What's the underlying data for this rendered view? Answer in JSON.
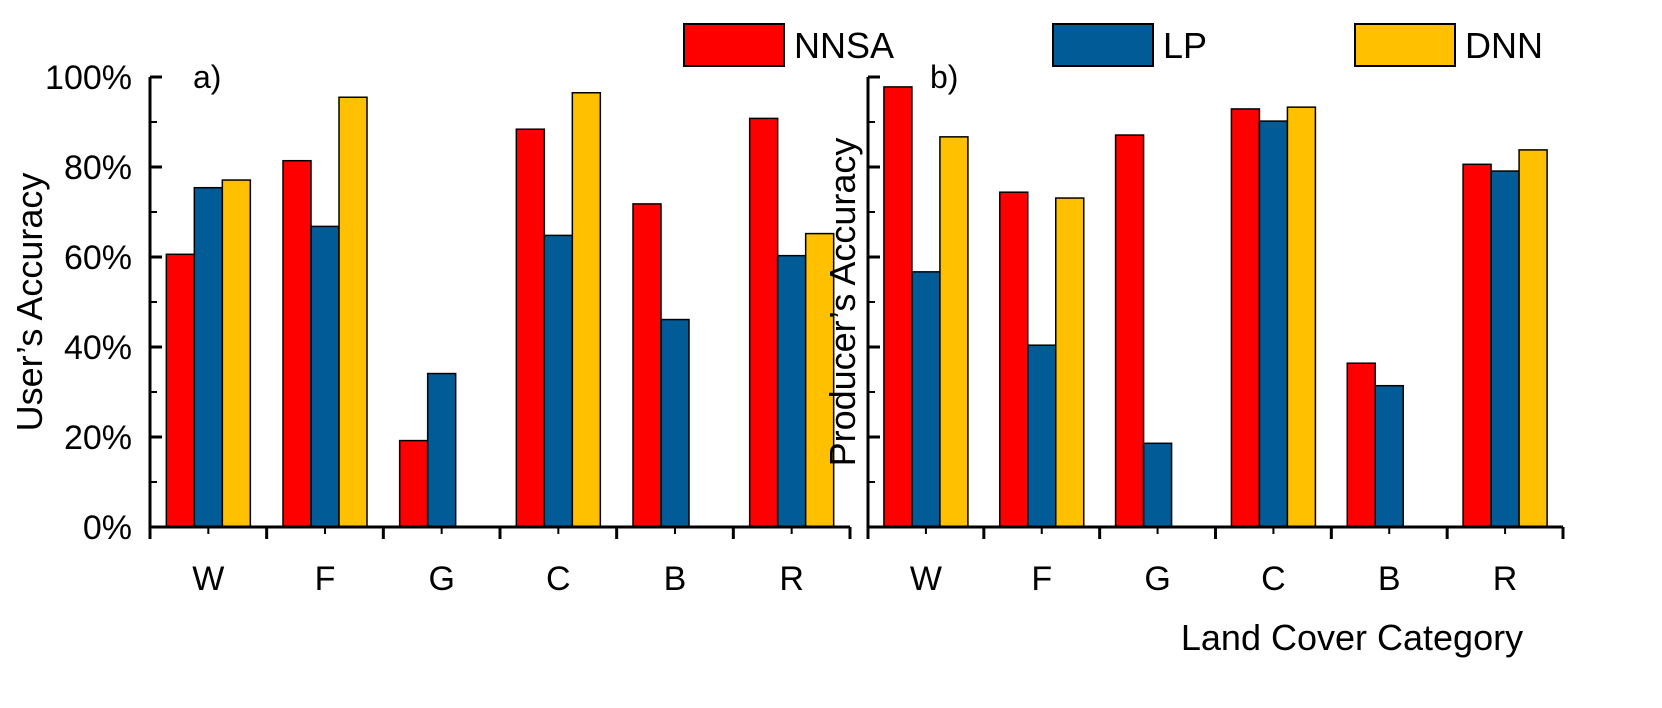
{
  "legend": {
    "items": [
      {
        "label": "NNSA",
        "color": "#ff0000"
      },
      {
        "label": "LP",
        "color": "#005b96"
      },
      {
        "label": "DNN",
        "color": "#ffc000"
      }
    ]
  },
  "xlabel": "Land Cover Category",
  "chart_data": [
    {
      "type": "bar",
      "panel_label": "a)",
      "ylabel": "User’s Accuracy",
      "categories": [
        "W",
        "F",
        "G",
        "C",
        "B",
        "R"
      ],
      "ylim": [
        0,
        100
      ],
      "ytick_values": [
        0,
        20,
        40,
        60,
        80,
        100
      ],
      "ytick_labels": [
        "0%",
        "20%",
        "40%",
        "60%",
        "80%",
        "100%"
      ],
      "series": [
        {
          "name": "NNSA",
          "values": [
            60.6,
            81.4,
            19.2,
            88.4,
            71.8,
            90.8
          ]
        },
        {
          "name": "LP",
          "values": [
            75.4,
            66.8,
            34.1,
            64.8,
            46.1,
            60.3
          ]
        },
        {
          "name": "DNN",
          "values": [
            77.1,
            95.5,
            0,
            96.5,
            0,
            65.2
          ]
        }
      ]
    },
    {
      "type": "bar",
      "panel_label": "b)",
      "ylabel": "Producer’s Accuracy",
      "categories": [
        "W",
        "F",
        "G",
        "C",
        "B",
        "R"
      ],
      "ylim": [
        0,
        100
      ],
      "ytick_values": [
        0,
        20,
        40,
        60,
        80,
        100
      ],
      "ytick_labels": [],
      "series": [
        {
          "name": "NNSA",
          "values": [
            97.8,
            74.4,
            87.1,
            92.9,
            36.4,
            80.6
          ]
        },
        {
          "name": "LP",
          "values": [
            56.7,
            40.4,
            18.6,
            90.2,
            31.4,
            79.1
          ]
        },
        {
          "name": "DNN",
          "values": [
            86.7,
            73.1,
            0,
            93.3,
            0,
            83.8
          ]
        }
      ]
    }
  ]
}
